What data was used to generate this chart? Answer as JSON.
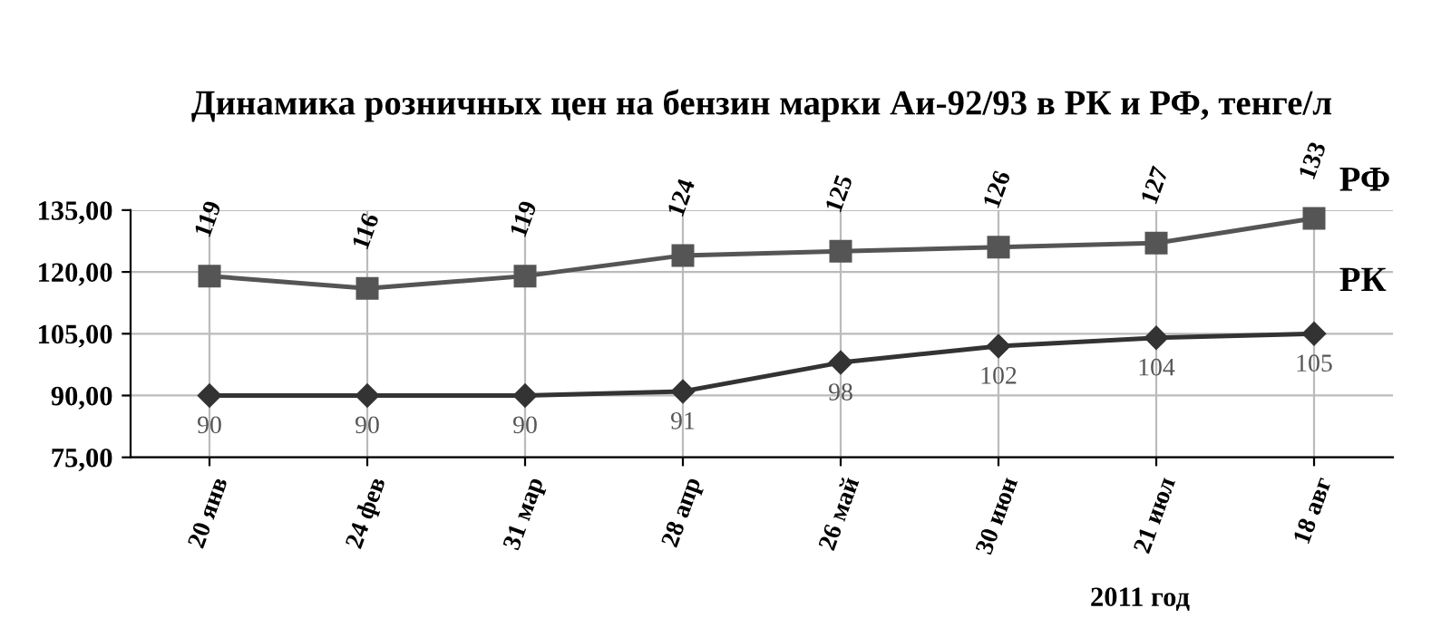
{
  "chart_data": {
    "type": "line",
    "title": "Динамика розничных цен на бензин марки Аи-92/93 в РК и РФ, тенге/л",
    "categories": [
      "20 янв",
      "24 фев",
      "31 мар",
      "28 апр",
      "26 май",
      "30 июн",
      "21 июл",
      "18 авг"
    ],
    "series": [
      {
        "name": "РФ",
        "color": "#555555",
        "marker": "square",
        "values": [
          119,
          116,
          119,
          124,
          125,
          126,
          127,
          133
        ]
      },
      {
        "name": "РК",
        "color": "#333333",
        "marker": "diamond",
        "values": [
          90,
          90,
          90,
          91,
          98,
          102,
          104,
          105
        ]
      }
    ],
    "ylim": [
      75,
      135
    ],
    "yticks": [
      {
        "value": 75,
        "label": "75,00"
      },
      {
        "value": 90,
        "label": "90,00"
      },
      {
        "value": 105,
        "label": "105,00"
      },
      {
        "value": 120,
        "label": "120,00"
      },
      {
        "value": 135,
        "label": "135,00"
      }
    ],
    "grid": true,
    "data_labels": true,
    "line_style": "solid",
    "annotations": [
      "2011 год"
    ]
  }
}
